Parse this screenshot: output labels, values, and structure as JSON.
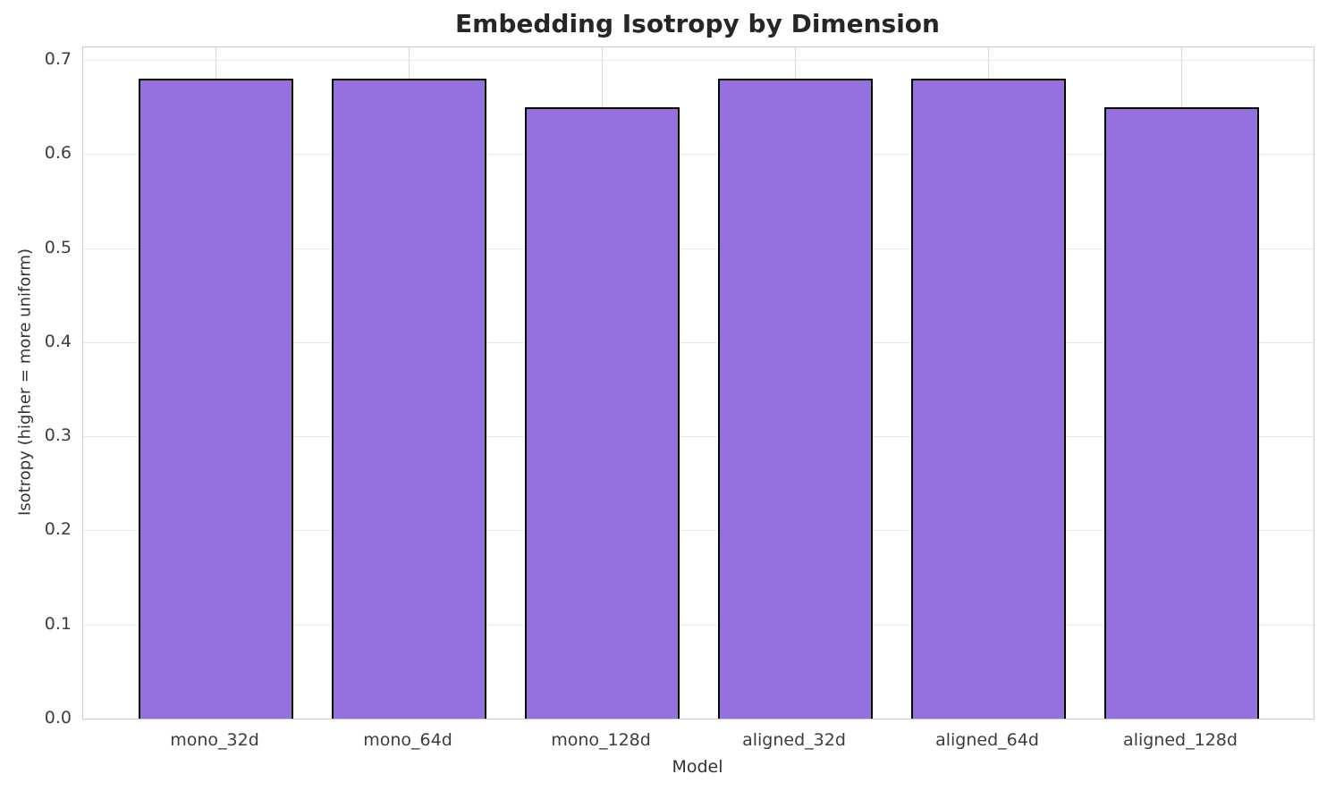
{
  "chart_data": {
    "type": "bar",
    "title": "Embedding Isotropy by Dimension",
    "xlabel": "Model",
    "ylabel": "Isotropy (higher = more uniform)",
    "categories": [
      "mono_32d",
      "mono_64d",
      "mono_128d",
      "aligned_32d",
      "aligned_64d",
      "aligned_128d"
    ],
    "values": [
      0.68,
      0.68,
      0.65,
      0.68,
      0.68,
      0.65
    ],
    "ylim": [
      0.0,
      0.7133
    ],
    "yticks": [
      0.0,
      0.1,
      0.2,
      0.3,
      0.4,
      0.5,
      0.6,
      0.7
    ],
    "ytick_labels": [
      "0.0",
      "0.1",
      "0.2",
      "0.3",
      "0.4",
      "0.5",
      "0.6",
      "0.7"
    ],
    "grid": true,
    "grid_axes": "both",
    "legend_position": "none",
    "bar_fill_color": "#9370DB",
    "bar_edge_color": "#000000",
    "grid_color": "#e8e8e8",
    "spine_color": "#cccccc",
    "title_color": "#262626",
    "tick_label_color": "#3d3d3d"
  }
}
